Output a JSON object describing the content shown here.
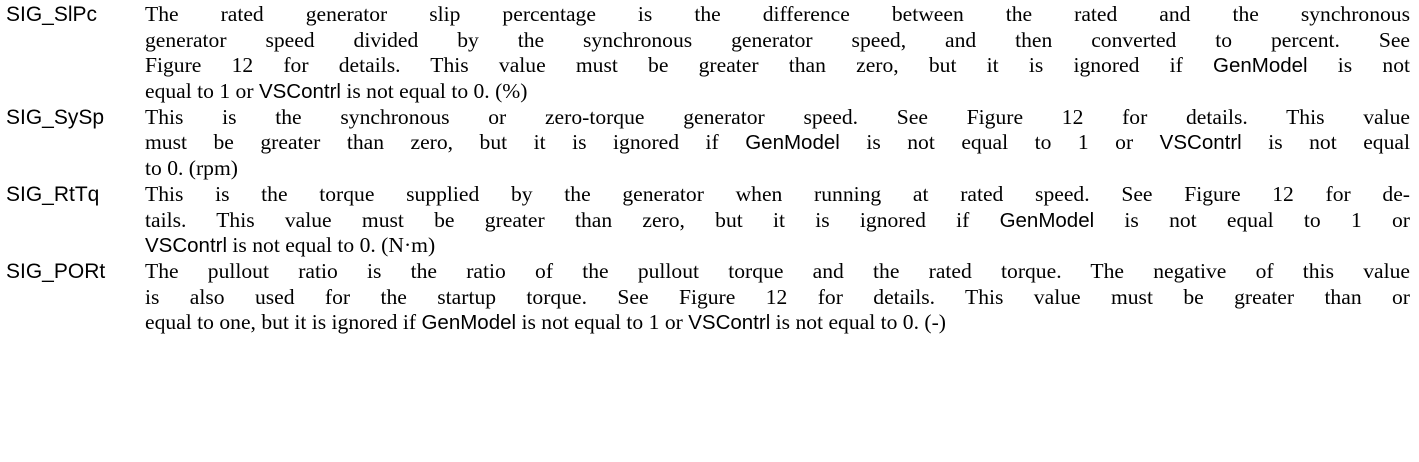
{
  "entries": [
    {
      "term": "SIG_SlPc",
      "lines": [
        [
          {
            "t": "The rated generator slip percentage is the difference between the rated and the synchronous"
          }
        ],
        [
          {
            "t": "generator speed divided by the synchronous generator speed, and then converted to percent.  See"
          }
        ],
        [
          {
            "t": "Figure 12 for details.  This value must be greater than zero, but it is ignored if "
          },
          {
            "t": "GenModel",
            "code": true
          },
          {
            "t": " is not"
          }
        ],
        [
          {
            "t": "equal to 1 or "
          },
          {
            "t": "VSContrl",
            "code": true
          },
          {
            "t": " is not equal to 0.  (%)"
          }
        ]
      ]
    },
    {
      "term": "SIG_SySp",
      "lines": [
        [
          {
            "t": "This is the synchronous or zero-torque generator speed.  See Figure 12 for details.  This value"
          }
        ],
        [
          {
            "t": "must be greater than zero, but it is ignored if "
          },
          {
            "t": "GenModel",
            "code": true
          },
          {
            "t": " is not equal to 1 or "
          },
          {
            "t": "VSContrl",
            "code": true
          },
          {
            "t": " is not equal"
          }
        ],
        [
          {
            "t": "to 0.  (rpm)"
          }
        ]
      ]
    },
    {
      "term": "SIG_RtTq",
      "lines": [
        [
          {
            "t": "This is the torque supplied by the generator when running at rated speed.  See Figure 12 for de-"
          }
        ],
        [
          {
            "t": "tails.  This value must be greater than zero, but it is ignored if "
          },
          {
            "t": "GenModel",
            "code": true
          },
          {
            "t": " is not equal to 1 or"
          }
        ],
        [
          {
            "t": "VSContrl",
            "code": true
          },
          {
            "t": " is not equal to 0.  (N·m)"
          }
        ]
      ]
    },
    {
      "term": "SIG_PORt",
      "lines": [
        [
          {
            "t": "The pullout ratio is the ratio of the pullout torque and the rated torque.  The negative of this value"
          }
        ],
        [
          {
            "t": "is also used for the startup torque.  See Figure 12 for details.  This value must be greater than or"
          }
        ],
        [
          {
            "t": "equal to one, but it is ignored if "
          },
          {
            "t": "GenModel",
            "code": true
          },
          {
            "t": " is not equal to 1 or "
          },
          {
            "t": "VSContrl",
            "code": true
          },
          {
            "t": " is not equal to 0.  (-)"
          }
        ]
      ]
    }
  ]
}
